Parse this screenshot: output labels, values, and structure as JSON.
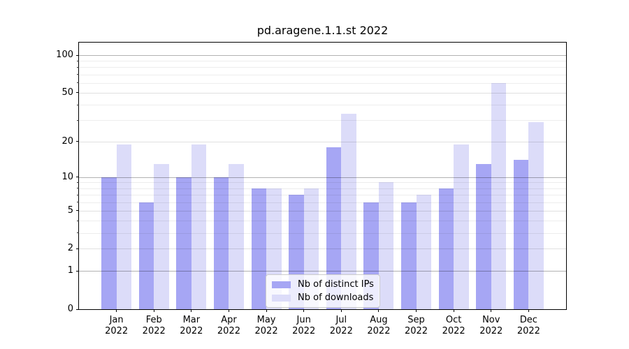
{
  "chart_data": {
    "type": "bar",
    "title": "pd.aragene.1.1.st 2022",
    "categories": [
      "Jan",
      "Feb",
      "Mar",
      "Apr",
      "May",
      "Jun",
      "Jul",
      "Aug",
      "Sep",
      "Oct",
      "Nov",
      "Dec"
    ],
    "year_label": "2022",
    "series": [
      {
        "name": "Nb of distinct IPs",
        "color": "#a6a6f4",
        "values": [
          10,
          6,
          10,
          10,
          8,
          7,
          18,
          6,
          6,
          8,
          13,
          14
        ]
      },
      {
        "name": "Nb of downloads",
        "color": "#dcdcf9",
        "values": [
          19,
          13,
          19,
          13,
          8,
          8,
          34,
          9,
          7,
          19,
          60,
          29
        ]
      }
    ],
    "yscale": "log10(1+v)",
    "ylim": [
      0,
      126
    ],
    "ytick_labels": [
      0,
      1,
      2,
      5,
      10,
      20,
      50,
      100
    ],
    "grid": {
      "strong": [
        1,
        10,
        100
      ],
      "medium": [
        2,
        5,
        20,
        50
      ],
      "minor": [
        3,
        4,
        6,
        7,
        8,
        9,
        30,
        40,
        60,
        70,
        80,
        90
      ]
    },
    "legend_position": "lower center",
    "xlabel": "",
    "ylabel": ""
  }
}
